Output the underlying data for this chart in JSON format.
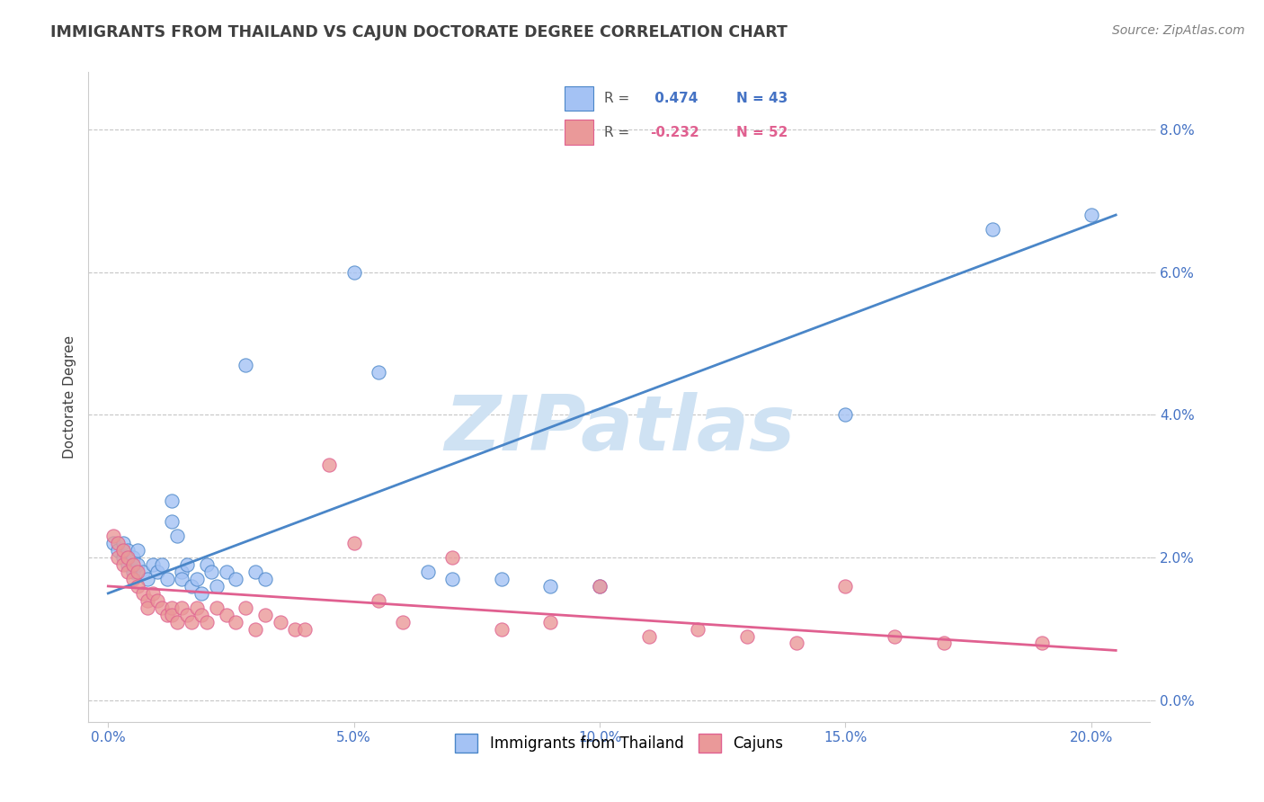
{
  "title": "IMMIGRANTS FROM THAILAND VS CAJUN DOCTORATE DEGREE CORRELATION CHART",
  "source": "Source: ZipAtlas.com",
  "ylabel_label": "Doctorate Degree",
  "legend_label1": "Immigrants from Thailand",
  "legend_label2": "Cajuns",
  "R1": 0.474,
  "N1": 43,
  "R2": -0.232,
  "N2": 52,
  "blue_color": "#a4c2f4",
  "pink_color": "#ea9999",
  "blue_line_color": "#4a86c8",
  "pink_line_color": "#e06090",
  "background_color": "#ffffff",
  "grid_color": "#c0c0c0",
  "title_color": "#404040",
  "source_color": "#808080",
  "watermark_color": "#cfe2f3",
  "tick_color": "#4472c4",
  "blue_points": [
    [
      0.001,
      0.022
    ],
    [
      0.002,
      0.021
    ],
    [
      0.003,
      0.022
    ],
    [
      0.003,
      0.02
    ],
    [
      0.004,
      0.021
    ],
    [
      0.004,
      0.019
    ],
    [
      0.005,
      0.02
    ],
    [
      0.005,
      0.018
    ],
    [
      0.006,
      0.019
    ],
    [
      0.006,
      0.021
    ],
    [
      0.007,
      0.018
    ],
    [
      0.008,
      0.017
    ],
    [
      0.009,
      0.019
    ],
    [
      0.01,
      0.018
    ],
    [
      0.011,
      0.019
    ],
    [
      0.012,
      0.017
    ],
    [
      0.013,
      0.028
    ],
    [
      0.013,
      0.025
    ],
    [
      0.014,
      0.023
    ],
    [
      0.015,
      0.018
    ],
    [
      0.015,
      0.017
    ],
    [
      0.016,
      0.019
    ],
    [
      0.017,
      0.016
    ],
    [
      0.018,
      0.017
    ],
    [
      0.019,
      0.015
    ],
    [
      0.02,
      0.019
    ],
    [
      0.021,
      0.018
    ],
    [
      0.022,
      0.016
    ],
    [
      0.024,
      0.018
    ],
    [
      0.026,
      0.017
    ],
    [
      0.028,
      0.047
    ],
    [
      0.03,
      0.018
    ],
    [
      0.032,
      0.017
    ],
    [
      0.05,
      0.06
    ],
    [
      0.055,
      0.046
    ],
    [
      0.065,
      0.018
    ],
    [
      0.07,
      0.017
    ],
    [
      0.08,
      0.017
    ],
    [
      0.09,
      0.016
    ],
    [
      0.1,
      0.016
    ],
    [
      0.15,
      0.04
    ],
    [
      0.18,
      0.066
    ],
    [
      0.2,
      0.068
    ]
  ],
  "pink_points": [
    [
      0.001,
      0.023
    ],
    [
      0.002,
      0.022
    ],
    [
      0.002,
      0.02
    ],
    [
      0.003,
      0.021
    ],
    [
      0.003,
      0.019
    ],
    [
      0.004,
      0.02
    ],
    [
      0.004,
      0.018
    ],
    [
      0.005,
      0.019
    ],
    [
      0.005,
      0.017
    ],
    [
      0.006,
      0.018
    ],
    [
      0.006,
      0.016
    ],
    [
      0.007,
      0.015
    ],
    [
      0.008,
      0.014
    ],
    [
      0.008,
      0.013
    ],
    [
      0.009,
      0.015
    ],
    [
      0.01,
      0.014
    ],
    [
      0.011,
      0.013
    ],
    [
      0.012,
      0.012
    ],
    [
      0.013,
      0.013
    ],
    [
      0.013,
      0.012
    ],
    [
      0.014,
      0.011
    ],
    [
      0.015,
      0.013
    ],
    [
      0.016,
      0.012
    ],
    [
      0.017,
      0.011
    ],
    [
      0.018,
      0.013
    ],
    [
      0.019,
      0.012
    ],
    [
      0.02,
      0.011
    ],
    [
      0.022,
      0.013
    ],
    [
      0.024,
      0.012
    ],
    [
      0.026,
      0.011
    ],
    [
      0.028,
      0.013
    ],
    [
      0.03,
      0.01
    ],
    [
      0.032,
      0.012
    ],
    [
      0.035,
      0.011
    ],
    [
      0.038,
      0.01
    ],
    [
      0.04,
      0.01
    ],
    [
      0.045,
      0.033
    ],
    [
      0.05,
      0.022
    ],
    [
      0.055,
      0.014
    ],
    [
      0.06,
      0.011
    ],
    [
      0.07,
      0.02
    ],
    [
      0.08,
      0.01
    ],
    [
      0.09,
      0.011
    ],
    [
      0.1,
      0.016
    ],
    [
      0.11,
      0.009
    ],
    [
      0.12,
      0.01
    ],
    [
      0.13,
      0.009
    ],
    [
      0.14,
      0.008
    ],
    [
      0.15,
      0.016
    ],
    [
      0.16,
      0.009
    ],
    [
      0.17,
      0.008
    ],
    [
      0.19,
      0.008
    ]
  ],
  "xlim": [
    -0.004,
    0.212
  ],
  "ylim": [
    -0.003,
    0.088
  ],
  "xtick_positions": [
    0.0,
    0.05,
    0.1,
    0.15,
    0.2
  ],
  "ytick_positions": [
    0.0,
    0.02,
    0.04,
    0.06,
    0.08
  ]
}
